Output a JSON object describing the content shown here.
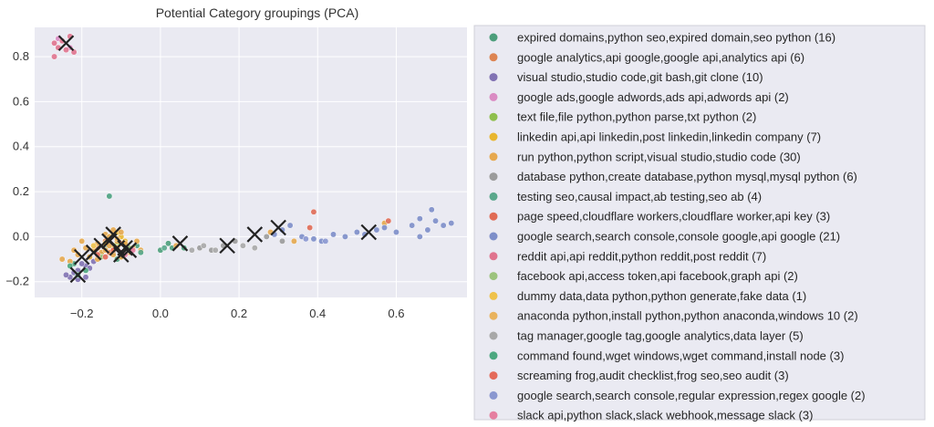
{
  "chart_data": {
    "type": "scatter",
    "title": "Potential Category groupings (PCA)",
    "xlabel": "",
    "ylabel": "",
    "xlim": [
      -0.32,
      0.78
    ],
    "ylim": [
      -0.27,
      0.93
    ],
    "xticks": [
      "−0.2",
      "0.0",
      "0.2",
      "0.4",
      "0.6"
    ],
    "xtick_values": [
      -0.2,
      0.0,
      0.2,
      0.4,
      0.6
    ],
    "yticks": [
      "−0.2",
      "0.0",
      "0.2",
      "0.4",
      "0.6",
      "0.8"
    ],
    "ytick_values": [
      -0.2,
      0.0,
      0.2,
      0.4,
      0.6,
      0.8
    ],
    "background": "#eaeaf2",
    "grid": true,
    "legend_position": "outside-right",
    "centroids": [
      {
        "x": -0.24,
        "y": 0.86
      },
      {
        "x": -0.21,
        "y": -0.17
      },
      {
        "x": -0.2,
        "y": -0.09
      },
      {
        "x": -0.17,
        "y": -0.07
      },
      {
        "x": -0.15,
        "y": -0.04
      },
      {
        "x": -0.13,
        "y": -0.02
      },
      {
        "x": -0.12,
        "y": 0.01
      },
      {
        "x": -0.11,
        "y": -0.05
      },
      {
        "x": -0.1,
        "y": -0.08
      },
      {
        "x": -0.09,
        "y": -0.05
      },
      {
        "x": -0.08,
        "y": -0.06
      },
      {
        "x": 0.05,
        "y": -0.03
      },
      {
        "x": 0.17,
        "y": -0.04
      },
      {
        "x": 0.24,
        "y": 0.01
      },
      {
        "x": 0.3,
        "y": 0.04
      },
      {
        "x": 0.53,
        "y": 0.02
      }
    ],
    "series": [
      {
        "label": "expired domains,python seo,expired domain,seo python (16)",
        "color": "#4c9e7b",
        "points": [
          [
            -0.22,
            -0.12
          ],
          [
            -0.13,
            0.18
          ],
          [
            -0.08,
            -0.06
          ],
          [
            -0.05,
            -0.07
          ],
          [
            0.0,
            -0.06
          ],
          [
            0.03,
            -0.05
          ],
          [
            0.06,
            -0.05
          ],
          [
            -0.12,
            -0.07
          ],
          [
            -0.15,
            -0.08
          ],
          [
            -0.1,
            -0.09
          ],
          [
            -0.09,
            -0.04
          ],
          [
            -0.14,
            -0.05
          ],
          [
            -0.06,
            -0.04
          ],
          [
            0.02,
            -0.03
          ],
          [
            -0.18,
            -0.09
          ],
          [
            -0.11,
            -0.1
          ]
        ]
      },
      {
        "label": "google analytics,api google,google api,analytics api (6)",
        "color": "#dd8452",
        "points": [
          [
            -0.14,
            -0.02
          ],
          [
            -0.12,
            -0.04
          ],
          [
            -0.16,
            -0.05
          ],
          [
            -0.1,
            -0.03
          ],
          [
            -0.13,
            -0.07
          ],
          [
            -0.11,
            -0.01
          ]
        ]
      },
      {
        "label": "visual studio,studio code,git bash,git clone (10)",
        "color": "#8172b3",
        "points": [
          [
            -0.21,
            -0.15
          ],
          [
            -0.19,
            -0.13
          ],
          [
            -0.23,
            -0.18
          ],
          [
            -0.2,
            -0.12
          ],
          [
            -0.22,
            -0.16
          ],
          [
            -0.18,
            -0.14
          ],
          [
            -0.24,
            -0.17
          ],
          [
            -0.17,
            -0.11
          ],
          [
            -0.21,
            -0.19
          ],
          [
            -0.19,
            -0.18
          ]
        ]
      },
      {
        "label": "google ads,google adwords,ads api,adwords api (2)",
        "color": "#da8bc3",
        "points": [
          [
            -0.26,
            0.88
          ],
          [
            -0.23,
            0.84
          ]
        ]
      },
      {
        "label": "text file,file python,python parse,txt python (2)",
        "color": "#8fbf4d",
        "points": [
          [
            -0.11,
            -0.03
          ],
          [
            -0.09,
            -0.06
          ]
        ]
      },
      {
        "label": "linkedin api,api linkedin,post linkedin,linkedin company (7)",
        "color": "#e8b62f",
        "points": [
          [
            -0.13,
            -0.01
          ],
          [
            -0.11,
            0.02
          ],
          [
            -0.12,
            -0.05
          ],
          [
            -0.1,
            0.0
          ],
          [
            -0.14,
            -0.03
          ],
          [
            -0.09,
            -0.02
          ],
          [
            -0.12,
            0.01
          ]
        ]
      },
      {
        "label": "run python,python script,visual studio,studio code (30)",
        "color": "#e6a84e",
        "points": [
          [
            -0.25,
            -0.1
          ],
          [
            -0.23,
            -0.11
          ],
          [
            -0.21,
            -0.08
          ],
          [
            -0.19,
            -0.05
          ],
          [
            -0.18,
            -0.09
          ],
          [
            -0.17,
            -0.06
          ],
          [
            -0.16,
            -0.03
          ],
          [
            -0.15,
            -0.07
          ],
          [
            -0.14,
            0.01
          ],
          [
            -0.13,
            -0.04
          ],
          [
            -0.12,
            0.03
          ],
          [
            -0.12,
            -0.08
          ],
          [
            -0.11,
            -0.05
          ],
          [
            -0.1,
            0.02
          ],
          [
            -0.1,
            -0.09
          ],
          [
            -0.09,
            -0.03
          ],
          [
            -0.08,
            -0.07
          ],
          [
            -0.07,
            -0.05
          ],
          [
            -0.06,
            -0.02
          ],
          [
            -0.05,
            -0.06
          ],
          [
            -0.2,
            -0.02
          ],
          [
            -0.22,
            -0.06
          ],
          [
            -0.16,
            -0.1
          ],
          [
            -0.14,
            -0.06
          ],
          [
            -0.13,
            0.0
          ],
          [
            -0.11,
            -0.02
          ],
          [
            0.04,
            -0.04
          ],
          [
            0.28,
            0.02
          ],
          [
            0.34,
            -0.02
          ],
          [
            0.57,
            0.06
          ]
        ]
      },
      {
        "label": "database python,create database,python mysql,mysql python (6)",
        "color": "#9b9b9b",
        "points": [
          [
            0.1,
            -0.05
          ],
          [
            0.13,
            -0.06
          ],
          [
            0.16,
            -0.04
          ],
          [
            0.19,
            -0.02
          ],
          [
            0.27,
            0.0
          ],
          [
            0.31,
            -0.02
          ]
        ]
      },
      {
        "label": "testing seo,causal impact,ab testing,seo ab (4)",
        "color": "#5aa88c",
        "points": [
          [
            -0.13,
            0.18
          ],
          [
            -0.08,
            -0.06
          ],
          [
            -0.05,
            -0.07
          ],
          [
            0.01,
            -0.05
          ]
        ]
      },
      {
        "label": "page speed,cloudflare workers,cloudflare worker,api key (3)",
        "color": "#e06b55",
        "points": [
          [
            0.39,
            0.11
          ],
          [
            0.38,
            0.04
          ],
          [
            0.58,
            0.07
          ]
        ]
      },
      {
        "label": "google search,search console,console google,api google (21)",
        "color": "#7d8ec9",
        "points": [
          [
            0.29,
            0.01
          ],
          [
            0.31,
            0.03
          ],
          [
            0.33,
            0.05
          ],
          [
            0.36,
            0.0
          ],
          [
            0.39,
            -0.01
          ],
          [
            0.41,
            -0.02
          ],
          [
            0.44,
            0.01
          ],
          [
            0.47,
            0.0
          ],
          [
            0.5,
            0.02
          ],
          [
            0.52,
            0.01
          ],
          [
            0.55,
            0.03
          ],
          [
            0.57,
            0.04
          ],
          [
            0.6,
            0.02
          ],
          [
            0.64,
            0.05
          ],
          [
            0.66,
            0.08
          ],
          [
            0.68,
            0.03
          ],
          [
            0.69,
            0.12
          ],
          [
            0.7,
            0.07
          ],
          [
            0.72,
            0.05
          ],
          [
            0.74,
            0.06
          ],
          [
            0.66,
            0.0
          ]
        ]
      },
      {
        "label": "reddit api,api reddit,python reddit,post reddit (7)",
        "color": "#e0738e",
        "points": [
          [
            -0.27,
            0.8
          ],
          [
            -0.25,
            0.87
          ],
          [
            -0.24,
            0.83
          ],
          [
            -0.22,
            0.82
          ],
          [
            -0.23,
            0.89
          ],
          [
            -0.26,
            0.84
          ],
          [
            -0.27,
            0.86
          ]
        ]
      },
      {
        "label": "facebook api,access token,api facebook,graph api (2)",
        "color": "#9cc37d",
        "points": [
          [
            -0.15,
            -0.09
          ],
          [
            -0.08,
            -0.05
          ]
        ]
      },
      {
        "label": "dummy data,data python,python generate,fake data (1)",
        "color": "#efc24b",
        "points": [
          [
            -0.17,
            -0.04
          ]
        ]
      },
      {
        "label": "anaconda python,install python,python anaconda,windows 10 (2)",
        "color": "#e9b35e",
        "points": [
          [
            -0.13,
            0.0
          ],
          [
            -0.11,
            -0.01
          ]
        ]
      },
      {
        "label": "tag manager,google tag,google analytics,data layer (5)",
        "color": "#a8a8a8",
        "points": [
          [
            0.08,
            -0.06
          ],
          [
            0.11,
            -0.04
          ],
          [
            0.14,
            -0.06
          ],
          [
            0.21,
            -0.04
          ],
          [
            0.24,
            -0.05
          ]
        ]
      },
      {
        "label": "command found,wget windows,wget command,install node (3)",
        "color": "#4ca880",
        "points": [
          [
            -0.21,
            -0.17
          ],
          [
            -0.19,
            -0.15
          ],
          [
            -0.23,
            -0.13
          ]
        ]
      },
      {
        "label": "screaming frog,audit checklist,frog seo,seo audit (3)",
        "color": "#e46a5a",
        "points": [
          [
            -0.16,
            -0.08
          ],
          [
            -0.12,
            -0.06
          ],
          [
            -0.14,
            -0.09
          ]
        ]
      },
      {
        "label": "google search,search console,regular expression,regex google (2)",
        "color": "#8a97d0",
        "points": [
          [
            0.37,
            -0.01
          ],
          [
            0.42,
            -0.02
          ]
        ]
      },
      {
        "label": "slack api,python slack,slack webhook,message slack (3)",
        "color": "#e57fa0",
        "points": [
          [
            -0.09,
            -0.08
          ],
          [
            -0.07,
            -0.06
          ],
          [
            -0.1,
            -0.07
          ]
        ]
      }
    ]
  }
}
